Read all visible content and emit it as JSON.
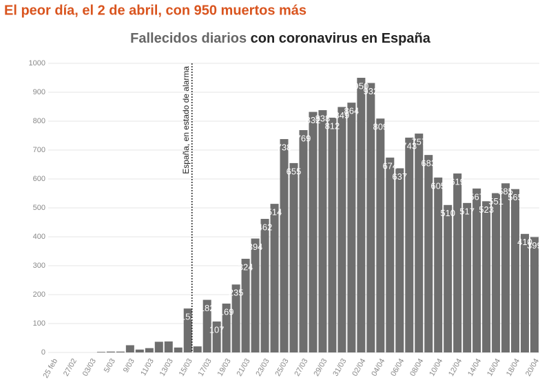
{
  "chart_data": {
    "type": "bar",
    "headline": "El peor día, el 2 de abril, con 950 muertos más",
    "title": [
      "Fallecidos diarios",
      "con coronavirus en España"
    ],
    "categories": [
      "25 feb",
      null,
      "27/02",
      null,
      "03/03",
      null,
      "5/03",
      null,
      "9/03",
      null,
      "11/03",
      null,
      "13/03",
      null,
      "15/03",
      null,
      "17/03",
      null,
      "19/03",
      null,
      "21/03",
      null,
      "23/03",
      null,
      "25/03",
      null,
      "27/03",
      null,
      "29/03",
      null,
      "31/03",
      null,
      "02/04",
      null,
      "04/04",
      null,
      "06/04",
      null,
      "08/04",
      null,
      "10/04",
      null,
      "12/04",
      null,
      "14/04",
      null,
      "16/04",
      null,
      "18/04",
      null,
      "20/04"
    ],
    "values": [
      0,
      0,
      0,
      0,
      0,
      2,
      3,
      3,
      25,
      10,
      15,
      37,
      38,
      17,
      152,
      21,
      182,
      107,
      169,
      235,
      324,
      394,
      462,
      514,
      738,
      655,
      769,
      832,
      838,
      812,
      849,
      864,
      950,
      932,
      809,
      674,
      637,
      743,
      757,
      683,
      605,
      510,
      619,
      517,
      567,
      523,
      551,
      585,
      565,
      410,
      399
    ],
    "value_labels": [
      null,
      null,
      null,
      null,
      null,
      null,
      null,
      null,
      null,
      null,
      null,
      null,
      null,
      null,
      "152",
      null,
      "182",
      "107",
      "169",
      "235",
      "324",
      "394",
      "462",
      "514",
      "738",
      "655",
      "769",
      "832",
      "838",
      "812",
      "849",
      "864",
      "950",
      "932",
      "809",
      "674",
      "637",
      "743",
      "757",
      "683",
      "605",
      "510",
      "619",
      "517",
      "567",
      "523",
      "551",
      "585",
      "565",
      "410",
      "399"
    ],
    "color": "#6e6e6e",
    "ylim": [
      0,
      1000
    ],
    "yticks": [
      0,
      100,
      200,
      300,
      400,
      500,
      600,
      700,
      800,
      900,
      1000
    ],
    "grid": true,
    "annotation": {
      "text": "España, en estado de alarma",
      "category": "15/03"
    }
  }
}
